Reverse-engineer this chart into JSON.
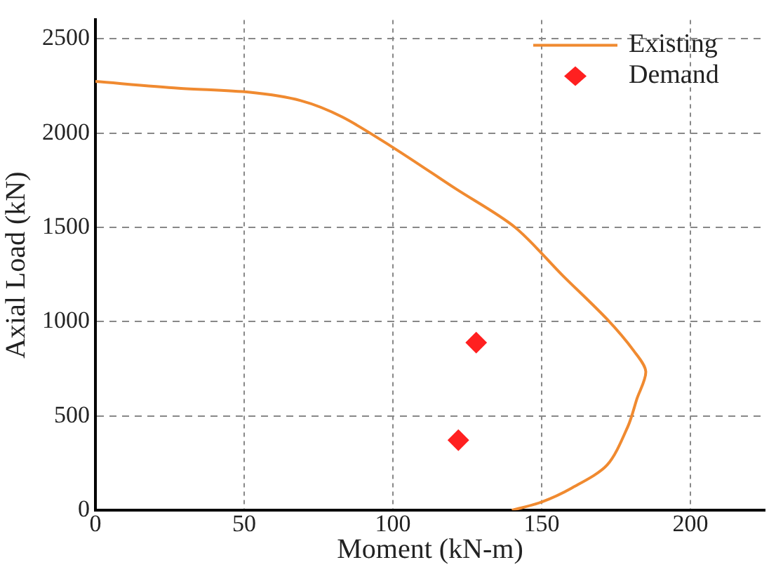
{
  "chart_data": {
    "type": "line",
    "xlabel": "Moment (kN-m)",
    "ylabel": "Axial Load (kN)",
    "xlim": [
      0,
      225
    ],
    "ylim": [
      0,
      2600
    ],
    "xticks": [
      0,
      50,
      100,
      150,
      200
    ],
    "yticks": [
      0,
      500,
      1000,
      1500,
      2000,
      2500
    ],
    "grid": true,
    "legend": "top right",
    "series": [
      {
        "name": "Existing",
        "color": "#f08a30",
        "marker": "none",
        "line_style": "solid",
        "x": [
          0,
          28,
          52,
          69,
          83,
          100,
          121,
          141,
          157,
          172,
          181,
          185,
          182,
          179,
          172,
          160,
          150,
          140
        ],
        "values": [
          2274,
          2238,
          2216,
          2172,
          2085,
          1924,
          1706,
          1501,
          1246,
          1013,
          845,
          736,
          590,
          445,
          240,
          117,
          44,
          0
        ]
      },
      {
        "name": "Demand",
        "type": "scatter",
        "color": "#ff2020",
        "marker": "diamond",
        "x": [
          128,
          122
        ],
        "values": [
          889,
          372
        ]
      }
    ]
  }
}
